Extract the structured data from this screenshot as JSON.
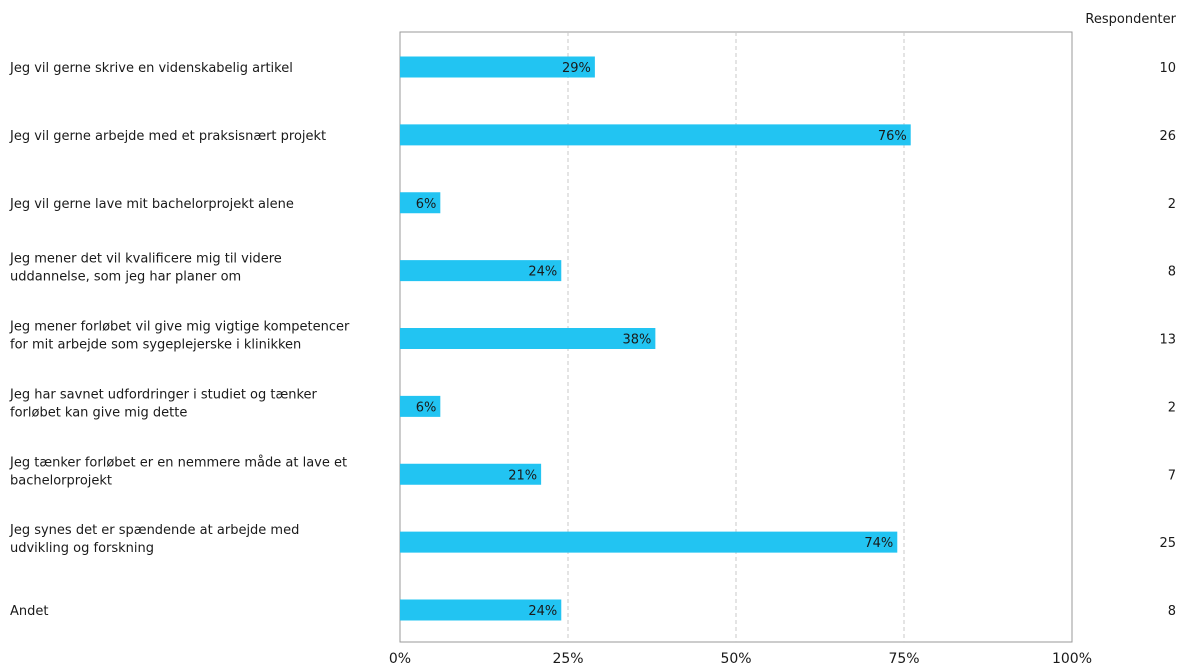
{
  "chart_data": {
    "type": "bar",
    "orientation": "horizontal",
    "respondents_header": "Respondenter",
    "categories": [
      [
        "Jeg vil gerne skrive en videnskabelig artikel"
      ],
      [
        "Jeg vil gerne arbejde med et praksisnært projekt"
      ],
      [
        "Jeg vil gerne lave mit bachelorprojekt alene"
      ],
      [
        "Jeg mener det vil kvalificere mig til videre",
        "uddannelse, som jeg har planer om"
      ],
      [
        "Jeg mener forløbet vil give mig vigtige kompetencer",
        "for mit arbejde som sygeplejerske i klinikken"
      ],
      [
        "Jeg har savnet udfordringer i studiet og tænker",
        "forløbet kan give mig dette"
      ],
      [
        "Jeg tænker forløbet er en nemmere måde at lave et",
        "bachelorprojekt"
      ],
      [
        "Jeg synes det er spændende at arbejde med",
        "udvikling og forskning"
      ],
      [
        "Andet"
      ]
    ],
    "values": [
      29,
      76,
      6,
      24,
      38,
      6,
      21,
      74,
      24
    ],
    "value_labels": [
      "29%",
      "76%",
      "6%",
      "24%",
      "38%",
      "6%",
      "21%",
      "74%",
      "24%"
    ],
    "respondents": [
      "10",
      "26",
      "2",
      "8",
      "13",
      "2",
      "7",
      "25",
      "8"
    ],
    "xlim": [
      0,
      100
    ],
    "x_ticks": [
      "0%",
      "25%",
      "50%",
      "75%",
      "100%"
    ],
    "grid": true,
    "bar_color": "#22c4f2",
    "grid_color": "#c8c8c8",
    "axis_color": "#9a9a9a"
  }
}
